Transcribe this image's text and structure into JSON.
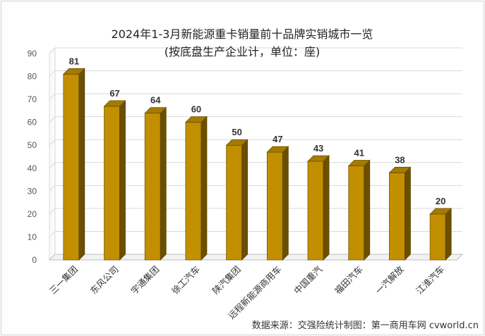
{
  "chart_data": {
    "type": "bar",
    "title": "2024年1-3月新能源重卡销量前十品牌实销城市一览",
    "subtitle": "(按底盘生产企业计，单位：座)",
    "categories": [
      "三一集团",
      "东风公司",
      "宇通集团",
      "徐工汽车",
      "陕汽集团",
      "远程新能源商用车",
      "中国重汽",
      "福田汽车",
      "一汽解放",
      "江淮汽车"
    ],
    "values": [
      81,
      67,
      64,
      60,
      50,
      47,
      43,
      41,
      38,
      20
    ],
    "ylim": [
      0,
      90
    ],
    "yticks": [
      0,
      10,
      20,
      30,
      40,
      50,
      60,
      70,
      80,
      90
    ],
    "grid": true,
    "bar_color": "#c28f00",
    "source": "数据来源：交强险统计制图：第一商用车网 cvworld.cn"
  }
}
